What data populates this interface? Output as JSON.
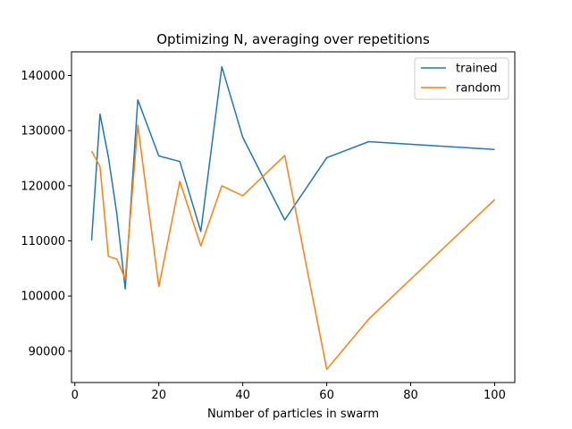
{
  "chart_data": {
    "type": "line",
    "title": "Optimizing N, averaging over repetitions",
    "xlabel": "Number of particles in swarm",
    "ylabel": "",
    "xlim": [
      -0.8,
      104.8
    ],
    "ylim": [
      84300,
      144300
    ],
    "xticks": [
      0,
      20,
      40,
      60,
      80,
      100
    ],
    "yticks": [
      90000,
      100000,
      110000,
      120000,
      130000,
      140000
    ],
    "grid": false,
    "legend_position": "top-right",
    "series": [
      {
        "name": "trained",
        "color": "#1f77b4",
        "x": [
          4,
          6,
          8,
          10,
          12,
          15,
          20,
          25,
          30,
          35,
          40,
          50,
          60,
          70,
          100
        ],
        "y": [
          110100,
          133000,
          125200,
          114900,
          101300,
          135600,
          125400,
          124400,
          111700,
          141600,
          128800,
          113800,
          125100,
          128000,
          126600
        ]
      },
      {
        "name": "random",
        "color": "#ff7f0e",
        "x": [
          4,
          6,
          8,
          10,
          12,
          15,
          20,
          25,
          30,
          35,
          40,
          50,
          60,
          70,
          100
        ],
        "y": [
          126300,
          123500,
          107200,
          106700,
          103100,
          131000,
          101700,
          120800,
          109100,
          120000,
          118200,
          125500,
          86700,
          95800,
          117500
        ]
      }
    ]
  }
}
